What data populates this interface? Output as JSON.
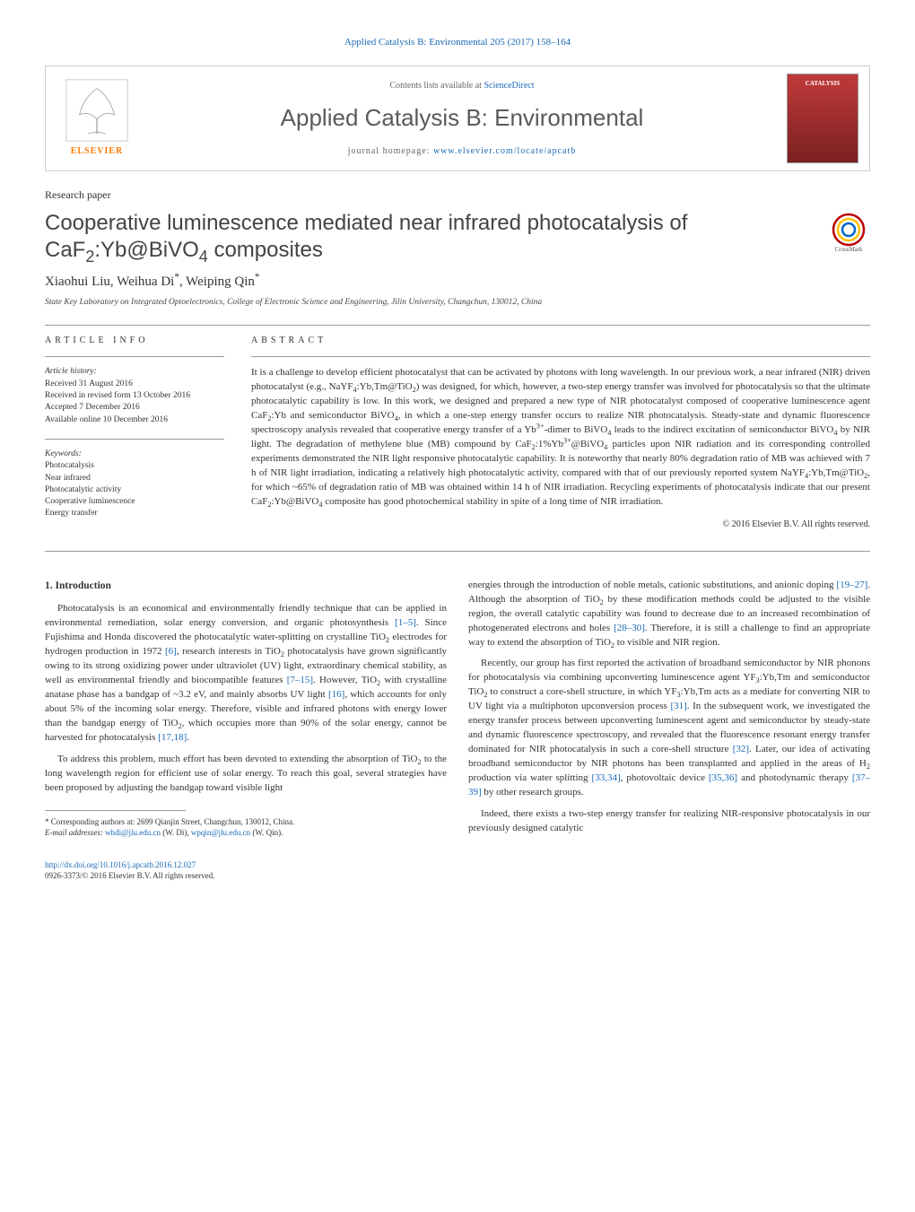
{
  "journal": {
    "ref_line": "Applied Catalysis B: Environmental 205 (2017) 158–164",
    "contents_text": "Contents lists available at ",
    "contents_link": "ScienceDirect",
    "name": "Applied Catalysis B: Environmental",
    "homepage_prefix": "journal homepage: ",
    "homepage_url": "www.elsevier.com/locate/apcatb",
    "publisher_label": "ELSEVIER",
    "cover_text": "CATALYSIS"
  },
  "paper": {
    "type": "Research paper",
    "title_html": "Cooperative luminescence mediated near infrared photocatalysis of CaF<sub>2</sub>:Yb@BiVO<sub>4</sub> composites",
    "crossmark_label": "CrossMark",
    "authors_html": "Xiaohui Liu, Weihua Di<sup>*</sup>, Weiping Qin<sup>*</sup>",
    "affiliation": "State Key Laboratory on Integrated Optoelectronics, College of Electronic Science and Engineering, Jilin University, Changchun, 130012, China"
  },
  "article_info": {
    "heading": "article info",
    "history_label": "Article history:",
    "history": [
      "Received 31 August 2016",
      "Received in revised form 13 October 2016",
      "Accepted 7 December 2016",
      "Available online 10 December 2016"
    ],
    "keywords_label": "Keywords:",
    "keywords": [
      "Photocatalysis",
      "Near infrared",
      "Photocatalytic activity",
      "Cooperative luminescence",
      "Energy transfer"
    ]
  },
  "abstract": {
    "heading": "abstract",
    "text_html": "It is a challenge to develop efficient photocatalyst that can be activated by photons with long wavelength. In our previous work, a near infrared (NIR) driven photocatalyst (e.g., NaYF<sub>4</sub>:Yb,Tm@TiO<sub>2</sub>) was designed, for which, however, a two-step energy transfer was involved for photocatalysis so that the ultimate photocatalytic capability is low. In this work, we designed and prepared a new type of NIR photocatalyst composed of cooperative luminescence agent CaF<sub>2</sub>:Yb and semiconductor BiVO<sub>4</sub>, in which a one-step energy transfer occurs to realize NIR photocatalysis. Steady-state and dynamic fluorescence spectroscopy analysis revealed that cooperative energy transfer of a Yb<sup>3+</sup>-dimer to BiVO<sub>4</sub> leads to the indirect excitation of semiconductor BiVO<sub>4</sub> by NIR light. The degradation of methylene blue (MB) compound by CaF<sub>2</sub>:1%Yb<sup>3+</sup>@BiVO<sub>4</sub> particles upon NIR radiation and its corresponding controlled experiments demonstrated the NIR light responsive photocatalytic capability. It is noteworthy that nearly 80% degradation ratio of MB was achieved with 7 h of NIR light irradiation, indicating a relatively high photocatalytic activity, compared with that of our previously reported system NaYF<sub>4</sub>:Yb,Tm@TiO<sub>2</sub>, for which ~65% of degradation ratio of MB was obtained within 14 h of NIR irradiation. Recycling experiments of photocatalysis indicate that our present CaF<sub>2</sub>:Yb@BiVO<sub>4</sub> composite has good photochemical stability in spite of a long time of NIR irradiation.",
    "copyright": "© 2016 Elsevier B.V. All rights reserved."
  },
  "body": {
    "section_heading": "1. Introduction",
    "left_paragraphs_html": [
      "Photocatalysis is an economical and environmentally friendly technique that can be applied in environmental remediation, solar energy conversion, and organic photosynthesis <span class=\"ref\">[1–5]</span>. Since Fujishima and Honda discovered the photocatalytic water-splitting on crystalline TiO<sub>2</sub> electrodes for hydrogen production in 1972 <span class=\"ref\">[6]</span>, research interests in TiO<sub>2</sub> photocatalysis have grown significantly owing to its strong oxidizing power under ultraviolet (UV) light, extraordinary chemical stability, as well as environmental friendly and biocompatible features <span class=\"ref\">[7–15]</span>. However, TiO<sub>2</sub> with crystalline anatase phase has a bandgap of ~3.2 eV, and mainly absorbs UV light <span class=\"ref\">[16]</span>, which accounts for only about 5% of the incoming solar energy. Therefore, visible and infrared photons with energy lower than the bandgap energy of TiO<sub>2</sub>, which occupies more than 90% of the solar energy, cannot be harvested for photocatalysis <span class=\"ref\">[17,18]</span>.",
      "To address this problem, much effort has been devoted to extending the absorption of TiO<sub>2</sub> to the long wavelength region for efficient use of solar energy. To reach this goal, several strategies have been proposed by adjusting the bandgap toward visible light"
    ],
    "right_paragraphs_html": [
      "energies through the introduction of noble metals, cationic substitutions, and anionic doping <span class=\"ref\">[19–27]</span>. Although the absorption of TiO<sub>2</sub> by these modification methods could be adjusted to the visible region, the overall catalytic capability was found to decrease due to an increased recombination of photogenerated electrons and holes <span class=\"ref\">[28–30]</span>. Therefore, it is still a challenge to find an appropriate way to extend the absorption of TiO<sub>2</sub> to visible and NIR region.",
      "Recently, our group has first reported the activation of broadband semiconductor by NIR phonons for photocatalysis via combining upconverting luminescence agent YF<sub>3</sub>:Yb,Tm and semiconductor TiO<sub>2</sub> to construct a core-shell structure, in which YF<sub>3</sub>:Yb,Tm acts as a mediate for converting NIR to UV light via a multiphoton upconversion process <span class=\"ref\">[31]</span>. In the subsequent work, we investigated the energy transfer process between upconverting luminescent agent and semiconductor by steady-state and dynamic fluorescence spectroscopy, and revealed that the fluorescence resonant energy transfer dominated for NIR photocatalysis in such a core-shell structure <span class=\"ref\">[32]</span>. Later, our idea of activating broadband semiconductor by NIR photons has been transplanted and applied in the areas of H<sub>2</sub> production via water splitting <span class=\"ref\">[33,34]</span>, photovoltaic device <span class=\"ref\">[35,36]</span> and photodynamic therapy <span class=\"ref\">[37–39]</span> by other research groups.",
      "Indeed, there exists a two-step energy transfer for realizing NIR-responsive photocatalysis in our previously designed catalytic"
    ]
  },
  "footnote": {
    "corr_text": "* Corresponding authors at: 2699 Qianjin Street, Changchun, 130012, China.",
    "email_prefix": "E-mail addresses: ",
    "email1": "whdi@jlu.edu.cn",
    "email1_suffix": " (W. Di), ",
    "email2": "wpqin@jlu.edu.cn",
    "email2_suffix": " (W. Qin)."
  },
  "footer": {
    "doi": "http://dx.doi.org/10.1016/j.apcatb.2016.12.027",
    "issn_line": "0926-3373/© 2016 Elsevier B.V. All rights reserved."
  },
  "colors": {
    "link": "#1a6bb5",
    "elsevier_orange": "#ff7a00",
    "text": "#333333",
    "border": "#cccccc"
  }
}
